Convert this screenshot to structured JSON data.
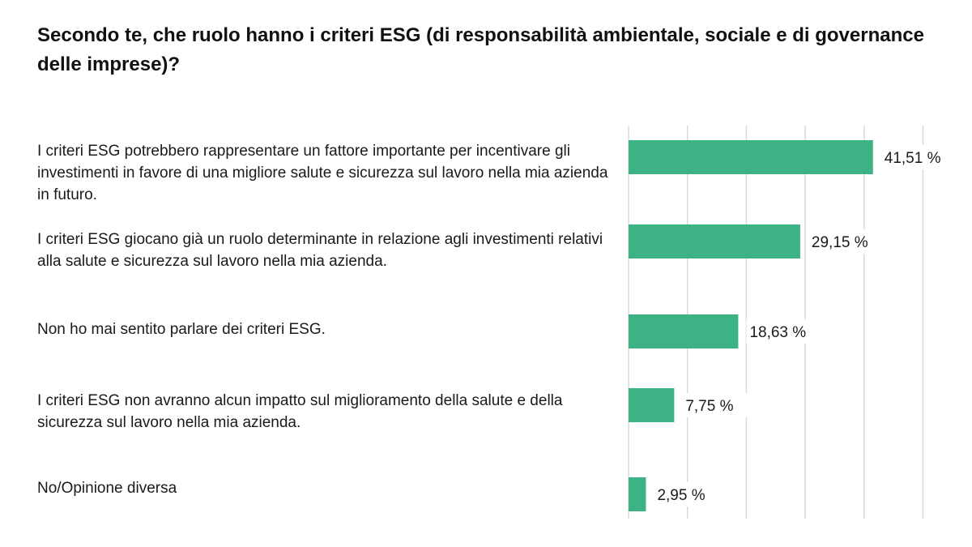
{
  "chart_data": {
    "type": "bar",
    "orientation": "horizontal",
    "title": "Secondo te, che ruolo hanno i criteri ESG (di responsabilità ambientale, sociale e di governance delle imprese)?",
    "categories": [
      "I criteri ESG potrebbero rappresentare un fattore importante per incentivare gli investimenti in favore di una migliore salute e sicurezza sul lavoro nella mia azienda in futuro.",
      "I criteri ESG giocano già un ruolo determinante in relazione agli investimenti relativi alla salute e sicurezza sul lavoro nella mia azienda.",
      "Non ho mai sentito parlare dei criteri ESG.",
      "I criteri ESG non avranno alcun impatto sul miglioramento della salute e della sicurezza sul lavoro nella mia azienda.",
      "No/Opinione diversa"
    ],
    "values": [
      41.51,
      29.15,
      18.63,
      7.75,
      2.95
    ],
    "value_labels": [
      "41,51 %",
      "29,15 %",
      "18,63 %",
      "7,75 %",
      "2,95 %"
    ],
    "xlim": [
      0,
      50
    ],
    "grid": true,
    "bar_color": "#3db385",
    "grid_color": "#d9d9d9"
  }
}
